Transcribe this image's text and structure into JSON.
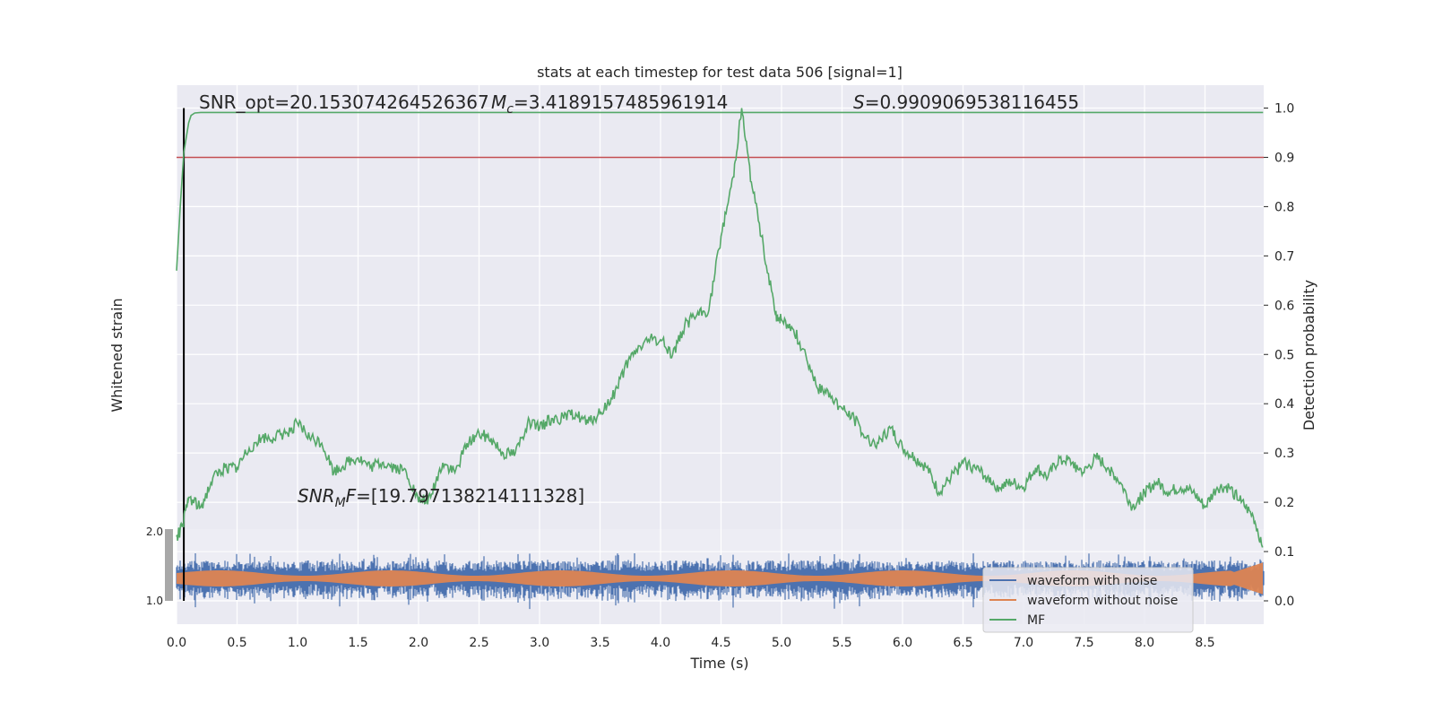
{
  "chart_data": {
    "type": "line",
    "title": "stats at each timestep for test data 506 [signal=1]",
    "xlabel": "Time (s)",
    "ylabel_left": "Whitened strain",
    "ylabel_right": "Detection probability",
    "xlim": [
      0.0,
      9.0
    ],
    "ylim_right": [
      -0.05,
      1.05
    ],
    "x_ticks": [
      "0.0",
      "0.5",
      "1.0",
      "1.5",
      "2.0",
      "2.5",
      "3.0",
      "3.5",
      "4.0",
      "4.5",
      "5.0",
      "5.5",
      "6.0",
      "6.5",
      "7.0",
      "7.5",
      "8.0",
      "8.5"
    ],
    "y_ticks_right": [
      "0.0",
      "0.1",
      "0.2",
      "0.3",
      "0.4",
      "0.5",
      "0.6",
      "0.7",
      "0.8",
      "0.9",
      "1.0"
    ],
    "y_ticks_left_top": "2.0",
    "y_ticks_left_bottom": "1.0",
    "grid": true,
    "legend_position": "lower-right",
    "annotations": {
      "snr_opt": "SNR_opt=20.153074264526367",
      "mc_var": "M",
      "mc_sub": "c",
      "mc_val": "=3.4189157485961914",
      "s_var": "S",
      "s_val": "=0.9909069538116455",
      "snr_mf_var": "SNR",
      "snr_mf_sub": "M",
      "snr_mf_var2": "F",
      "snr_mf_val": "=[19.797138214111328]"
    },
    "threshold": 0.9,
    "vertical_line_x": 0.06,
    "series": [
      {
        "name": "waveform with noise",
        "color": "#4c72b0",
        "description_kind": "noise_band"
      },
      {
        "name": "waveform without noise",
        "color": "#dd8452",
        "description_kind": "clean_band"
      },
      {
        "name": "MF",
        "color": "#55a868",
        "x": [
          0.0,
          0.03,
          0.06,
          0.1,
          0.12,
          0.15,
          0.2,
          0.3,
          0.5,
          1.0,
          2.0,
          3.0,
          4.0,
          4.5,
          4.6,
          4.67,
          5.0,
          6.0,
          7.0,
          8.0,
          8.98
        ],
        "y": [
          0.67,
          0.8,
          0.91,
          0.97,
          0.985,
          0.99,
          0.991,
          0.991,
          0.991,
          0.991,
          0.991,
          0.991,
          0.991,
          0.991,
          0.991,
          0.991,
          0.991,
          0.991,
          0.991,
          0.991,
          0.991
        ]
      },
      {
        "name": "",
        "color": "#55a868",
        "role": "statistic-curve",
        "x": [
          0.0,
          0.05,
          0.1,
          0.2,
          0.3,
          0.4,
          0.5,
          0.6,
          0.7,
          0.8,
          0.9,
          1.0,
          1.1,
          1.2,
          1.3,
          1.4,
          1.5,
          1.6,
          1.7,
          1.8,
          1.9,
          2.0,
          2.1,
          2.2,
          2.3,
          2.4,
          2.5,
          2.6,
          2.7,
          2.8,
          2.9,
          3.0,
          3.1,
          3.2,
          3.3,
          3.4,
          3.5,
          3.6,
          3.7,
          3.8,
          3.9,
          4.0,
          4.1,
          4.2,
          4.3,
          4.4,
          4.5,
          4.6,
          4.67,
          4.75,
          4.85,
          4.95,
          5.0,
          5.1,
          5.2,
          5.3,
          5.4,
          5.5,
          5.6,
          5.7,
          5.8,
          5.9,
          6.0,
          6.1,
          6.2,
          6.3,
          6.4,
          6.5,
          6.6,
          6.7,
          6.8,
          6.9,
          7.0,
          7.1,
          7.2,
          7.3,
          7.4,
          7.5,
          7.6,
          7.7,
          7.8,
          7.9,
          8.0,
          8.1,
          8.2,
          8.3,
          8.4,
          8.5,
          8.6,
          8.7,
          8.8,
          8.9,
          8.98
        ],
        "y": [
          0.13,
          0.15,
          0.21,
          0.19,
          0.25,
          0.27,
          0.27,
          0.31,
          0.33,
          0.33,
          0.34,
          0.36,
          0.33,
          0.32,
          0.26,
          0.28,
          0.29,
          0.27,
          0.28,
          0.27,
          0.26,
          0.2,
          0.21,
          0.28,
          0.26,
          0.32,
          0.34,
          0.33,
          0.3,
          0.3,
          0.36,
          0.35,
          0.37,
          0.37,
          0.38,
          0.36,
          0.38,
          0.41,
          0.47,
          0.51,
          0.53,
          0.53,
          0.5,
          0.56,
          0.58,
          0.59,
          0.74,
          0.86,
          1.0,
          0.85,
          0.72,
          0.58,
          0.57,
          0.55,
          0.5,
          0.43,
          0.42,
          0.39,
          0.37,
          0.33,
          0.32,
          0.35,
          0.31,
          0.29,
          0.27,
          0.22,
          0.25,
          0.28,
          0.27,
          0.25,
          0.23,
          0.24,
          0.23,
          0.27,
          0.25,
          0.29,
          0.28,
          0.26,
          0.29,
          0.27,
          0.24,
          0.19,
          0.22,
          0.24,
          0.22,
          0.23,
          0.22,
          0.19,
          0.23,
          0.23,
          0.2,
          0.17,
          0.11
        ]
      }
    ]
  }
}
